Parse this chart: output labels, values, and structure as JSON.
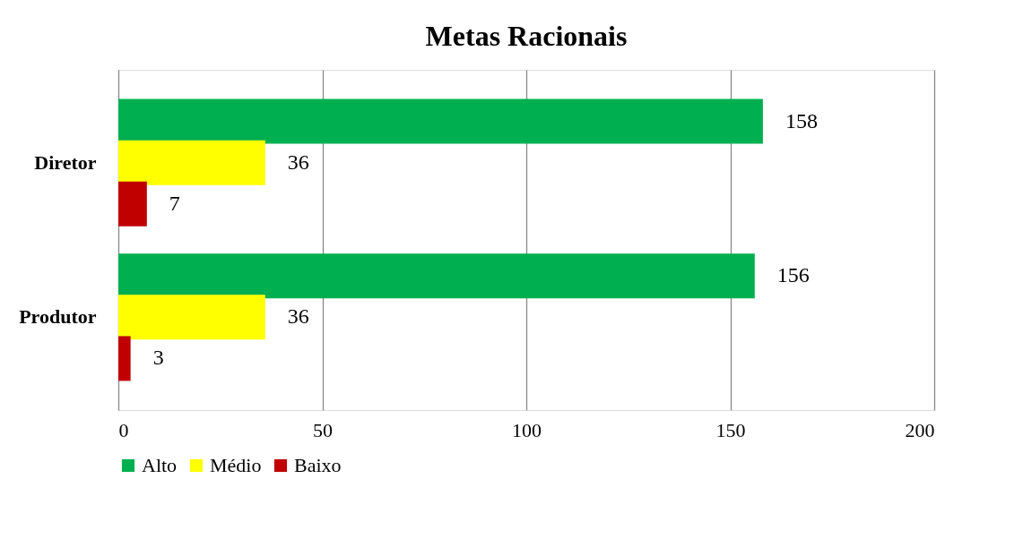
{
  "chart_data": {
    "type": "bar",
    "orientation": "horizontal",
    "title": "Metas Racionais",
    "categories": [
      "Diretor",
      "Produtor"
    ],
    "series": [
      {
        "name": "Alto",
        "color": "#00b050",
        "values": [
          158,
          156
        ]
      },
      {
        "name": "Médio",
        "color": "#ffff00",
        "values": [
          36,
          36
        ]
      },
      {
        "name": "Baixo",
        "color": "#c00000",
        "values": [
          7,
          3
        ]
      }
    ],
    "xlim": [
      0,
      200
    ],
    "xticks": [
      0,
      50,
      100,
      150,
      200
    ],
    "grid": "x",
    "legend": "bottom",
    "data_labels": true
  }
}
